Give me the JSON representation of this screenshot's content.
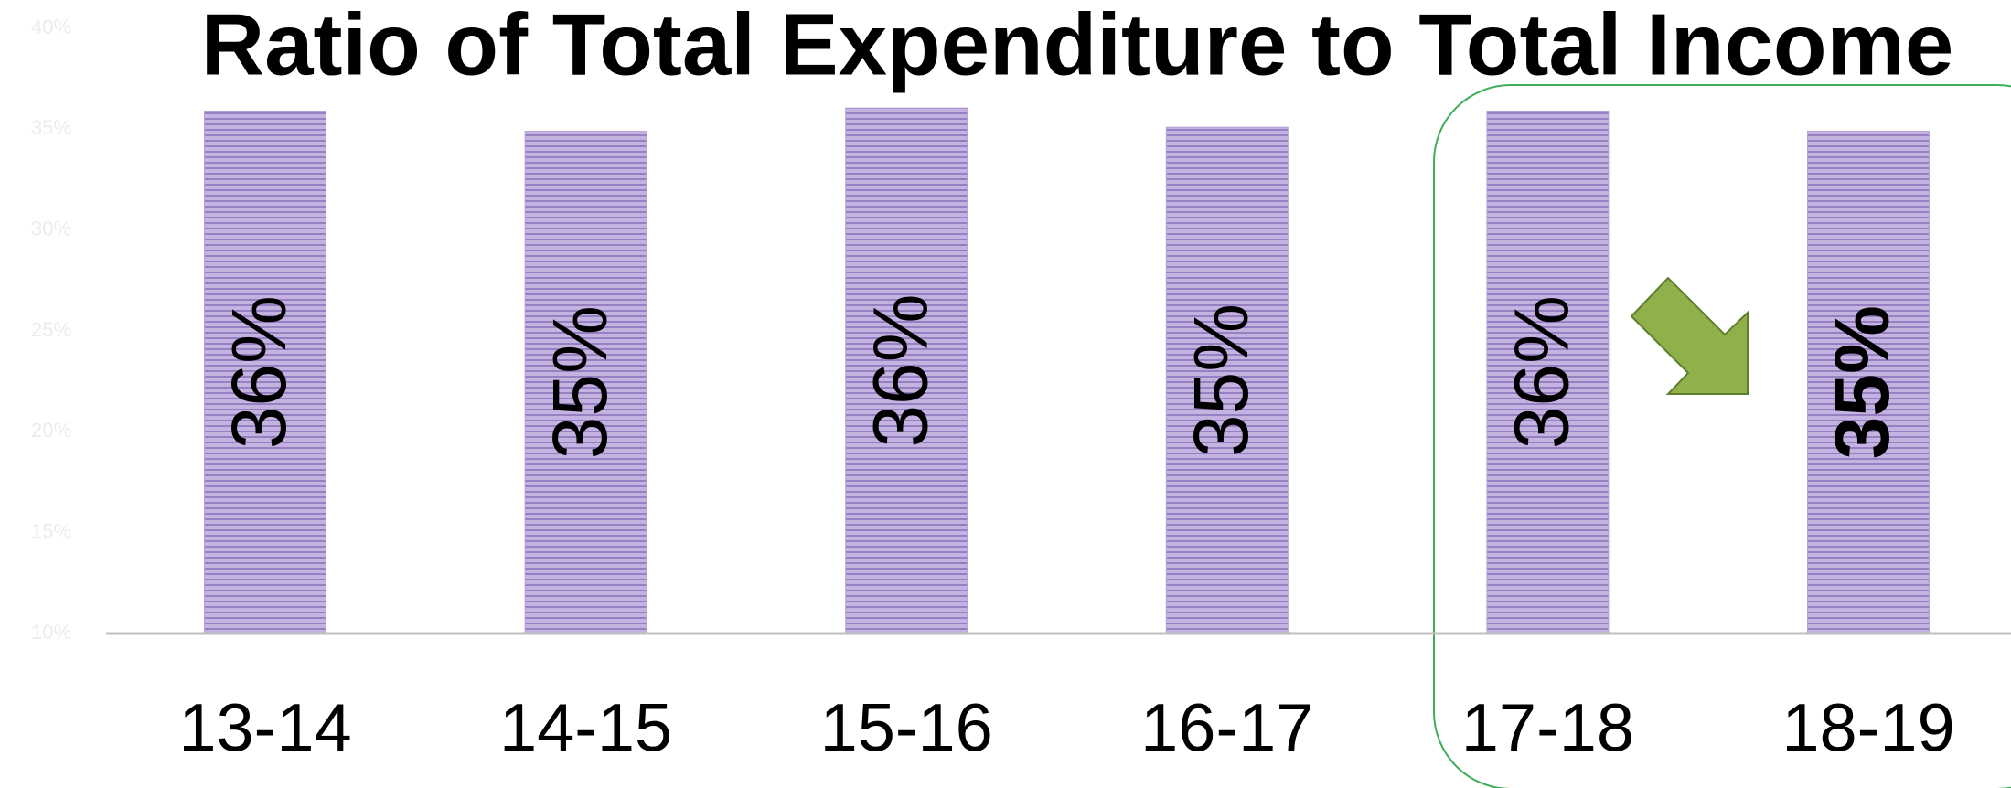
{
  "chart_data": {
    "type": "bar",
    "title": "Ratio of Total Expenditure to Total Income",
    "categories": [
      "13-14",
      "14-15",
      "15-16",
      "16-17",
      "17-18",
      "18-19"
    ],
    "values": [
      35.9,
      34.9,
      36.05,
      35.1,
      35.9,
      34.9
    ],
    "value_labels": [
      "36%",
      "35%",
      "36%",
      "35%",
      "36%",
      "35%"
    ],
    "color": "#b7a2d8",
    "ylim": [
      10,
      40
    ],
    "yticks": [
      {
        "value": 10,
        "label": "10%"
      },
      {
        "value": 15,
        "label": "15%"
      },
      {
        "value": 20,
        "label": "20%"
      },
      {
        "value": 25,
        "label": "25%"
      },
      {
        "value": 30,
        "label": "30%"
      },
      {
        "value": 35,
        "label": "35%"
      },
      {
        "value": 40,
        "label": "40%"
      }
    ]
  }
}
